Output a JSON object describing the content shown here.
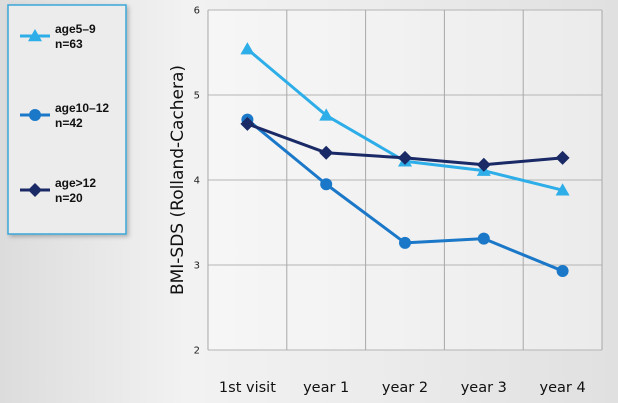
{
  "chart_data": {
    "type": "line",
    "title": "",
    "xlabel": "",
    "ylabel": "BMI-SDS (Rolland-Cachera)",
    "categories": [
      "1st visit",
      "year 1",
      "year 2",
      "year 3",
      "year 4"
    ],
    "ylim": [
      2,
      6
    ],
    "yticks": [
      "2",
      "3",
      "4",
      "5",
      "6"
    ],
    "grid": true,
    "legend_position": "left",
    "series": [
      {
        "name": "age5–9\nn=63",
        "values": [
          5.54,
          4.76,
          4.22,
          4.11,
          3.88
        ],
        "color": "#2eaee8",
        "marker": "triangle"
      },
      {
        "name": "age10–12\nn=42",
        "values": [
          4.71,
          3.95,
          3.26,
          3.31,
          2.93
        ],
        "color": "#1b78c8",
        "marker": "circle"
      },
      {
        "name": "age>12\nn=20",
        "values": [
          4.66,
          4.32,
          4.26,
          4.18,
          4.26
        ],
        "color": "#1a2a66",
        "marker": "diamond"
      }
    ]
  }
}
